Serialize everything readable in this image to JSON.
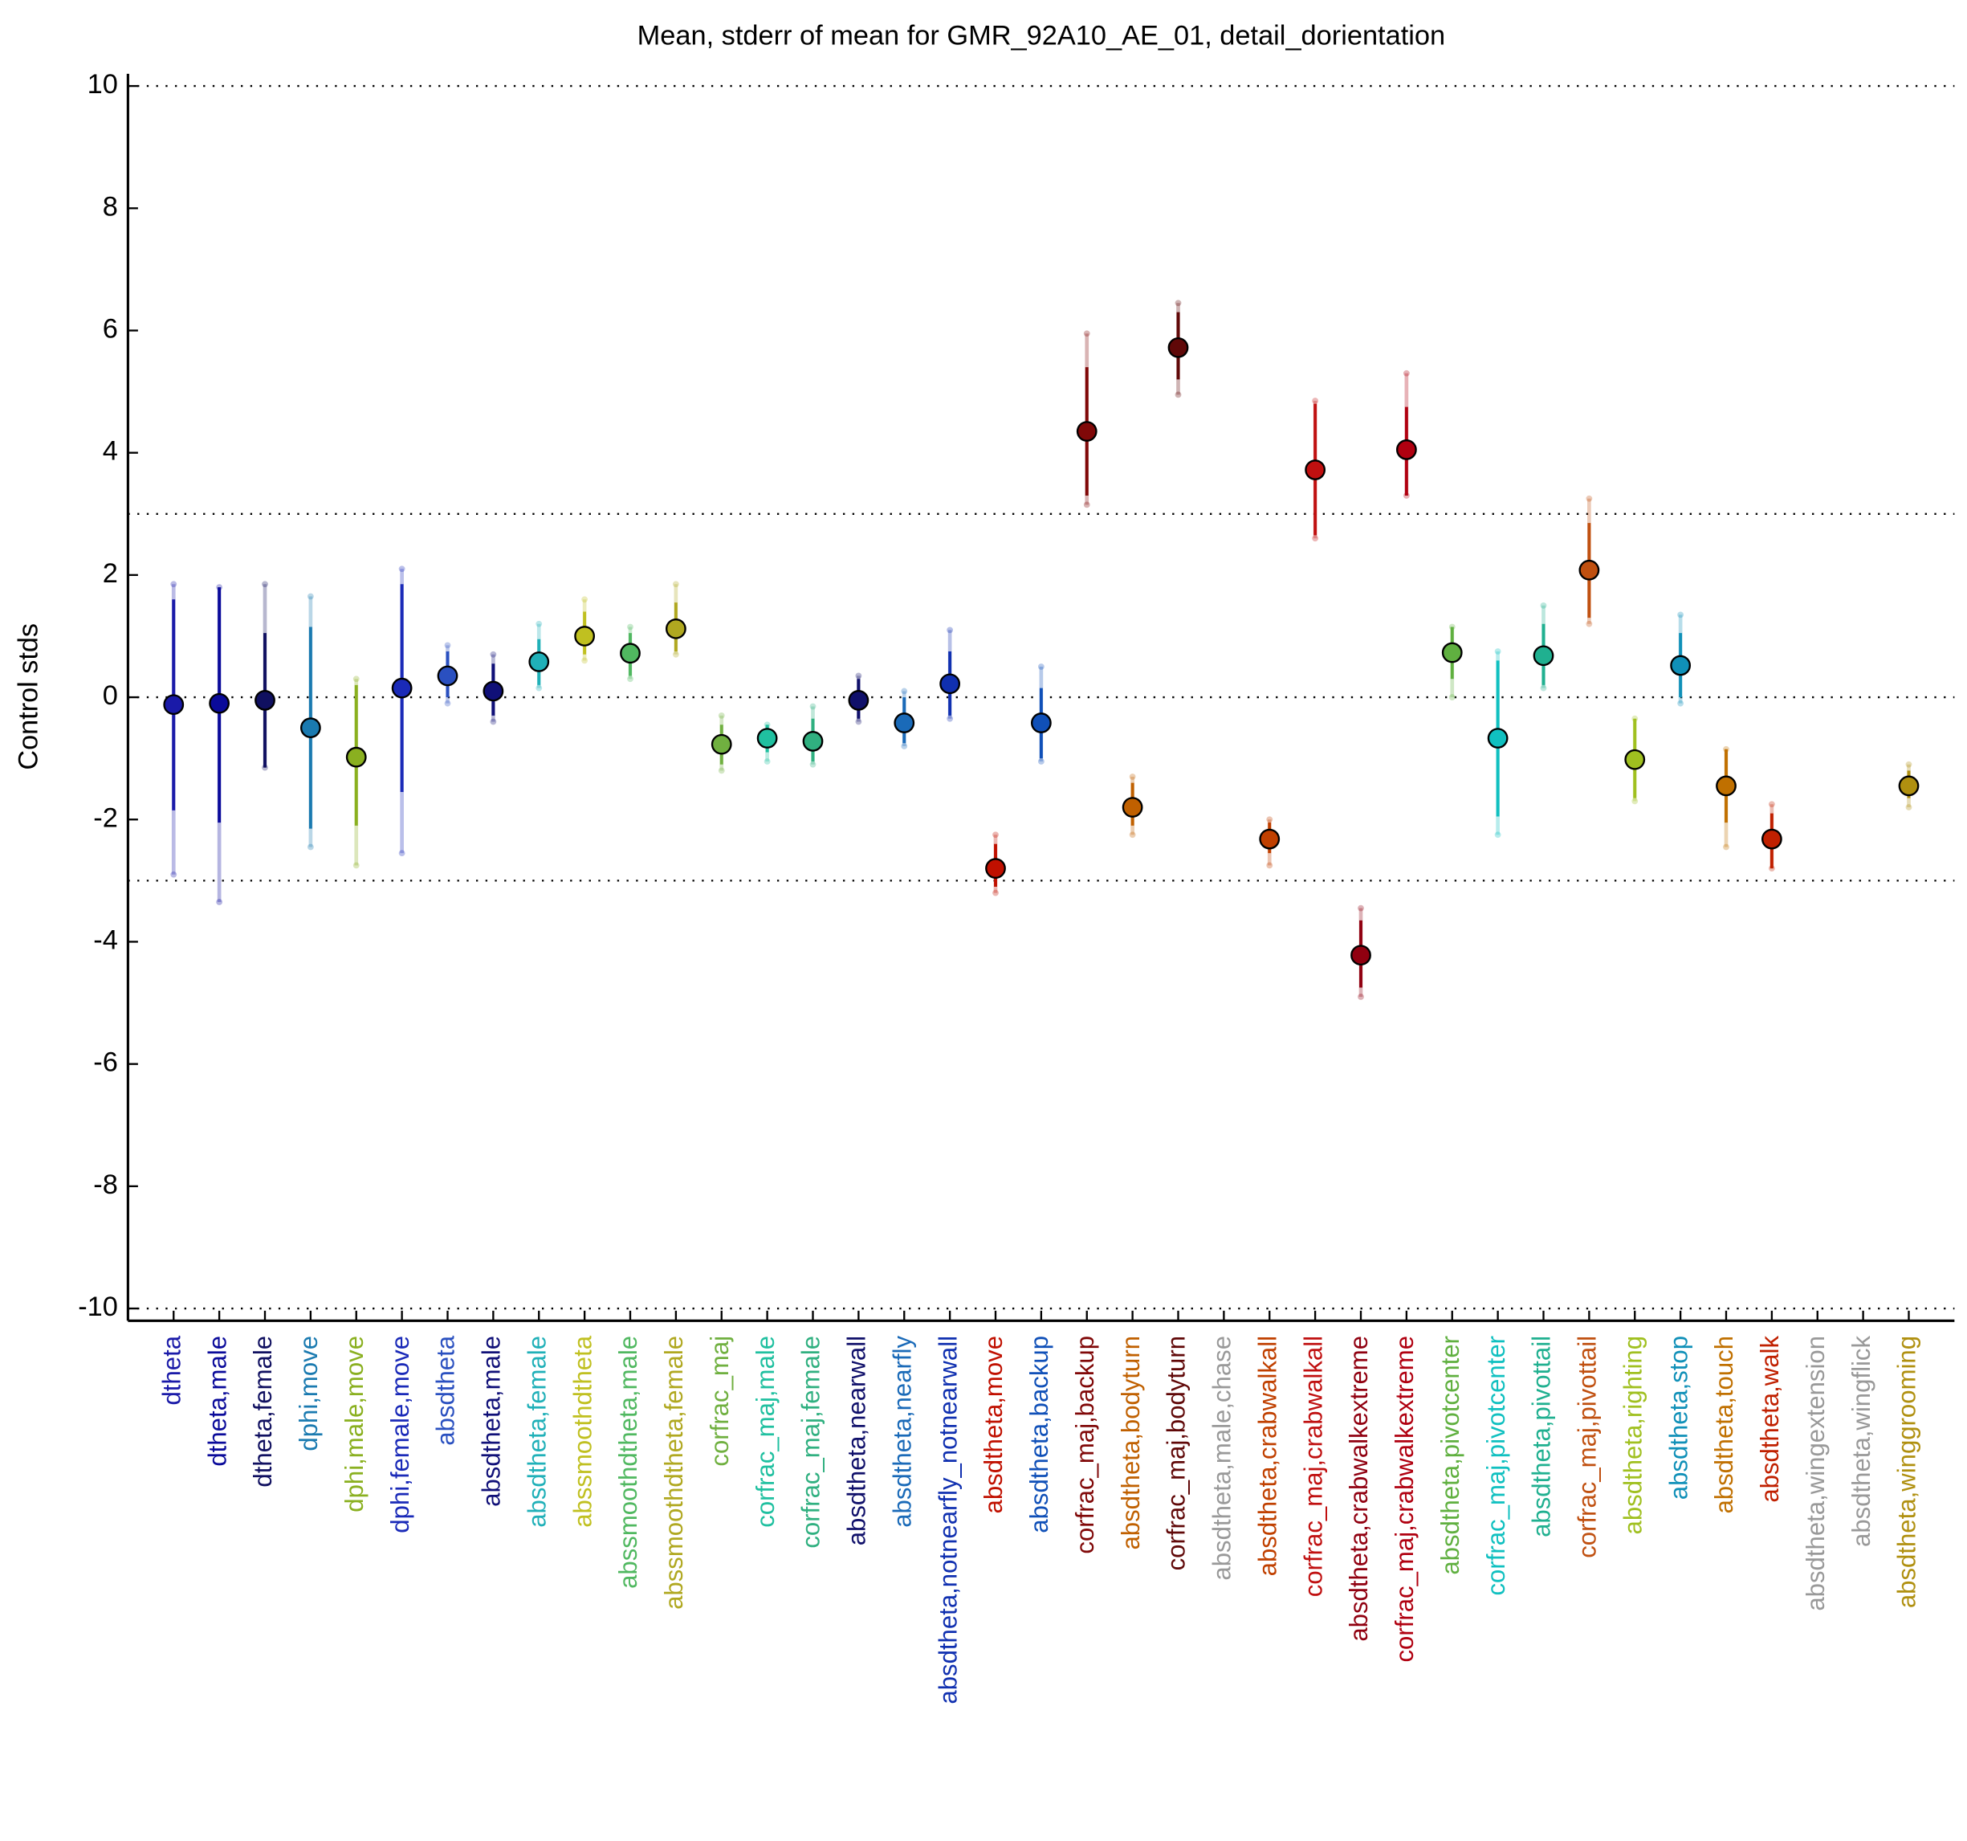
{
  "chart_data": {
    "type": "errorbar",
    "title": "Mean, stderr of mean for GMR_92A10_AE_01, detail_dorientation",
    "y_label": "Control stds",
    "ylim": [
      -10.2,
      10.2
    ],
    "yticks": [
      -10,
      -8,
      -6,
      -4,
      -2,
      0,
      2,
      4,
      6,
      8,
      10
    ],
    "hlines": [
      -10,
      -3,
      0,
      3,
      10
    ],
    "categories": [
      "dtheta",
      "dtheta,male",
      "dtheta,female",
      "dphi,move",
      "dphi,male,move",
      "dphi,female,move",
      "absdtheta",
      "absdtheta,male",
      "absdtheta,female",
      "abssmoothdtheta",
      "abssmoothdtheta,male",
      "abssmoothdtheta,female",
      "corfrac_maj",
      "corfrac_maj,male",
      "corfrac_maj,female",
      "absdtheta,nearwall",
      "absdtheta,nearfly",
      "absdtheta,notnearfly_notnearwall",
      "absdtheta,move",
      "absdtheta,backup",
      "corfrac_maj,backup",
      "absdtheta,bodyturn",
      "corfrac_maj,bodyturn",
      "absdtheta,male,chase",
      "absdtheta,crabwalkall",
      "corfrac_maj,crabwalkall",
      "absdtheta,crabwalkextreme",
      "corfrac_maj,crabwalkextreme",
      "absdtheta,pivotcenter",
      "corfrac_maj,pivotcenter",
      "absdtheta,pivottail",
      "corfrac_maj,pivottail",
      "absdtheta,righting",
      "absdtheta,stop",
      "absdtheta,touch",
      "absdtheta,walk",
      "absdtheta,wingextension",
      "absdtheta,wingflick",
      "absdtheta,winggrooming"
    ],
    "colors": [
      "#1a1aa8",
      "#0a0a9a",
      "#101060",
      "#1a7ab0",
      "#8ab020",
      "#1a2ab8",
      "#2a50c0",
      "#101078",
      "#20b0b8",
      "#c0c020",
      "#50b860",
      "#b0a820",
      "#70b040",
      "#20c0a0",
      "#30b080",
      "#10106a",
      "#1a6ab8",
      "#1030b0",
      "#c01000",
      "#1050b8",
      "#800808",
      "#c06000",
      "#600808",
      "#999999",
      "#c04000",
      "#c01010",
      "#900010",
      "#b00010",
      "#60b040",
      "#10c0c0",
      "#20b090",
      "#c05010",
      "#a0c020",
      "#1090b8",
      "#c07000",
      "#c02000",
      "#999999",
      "#999999",
      "#b09010"
    ],
    "values": [
      -0.12,
      -0.1,
      -0.05,
      -0.5,
      -0.98,
      0.15,
      0.35,
      0.1,
      0.58,
      1.0,
      0.72,
      1.12,
      -0.77,
      -0.67,
      -0.72,
      -0.05,
      -0.42,
      0.22,
      -2.8,
      -0.42,
      4.35,
      -1.8,
      5.72,
      null,
      -2.32,
      3.72,
      -4.22,
      4.05,
      0.73,
      -0.67,
      0.68,
      2.08,
      -1.02,
      0.52,
      -1.45,
      -2.32,
      null,
      null,
      -1.45
    ],
    "err_low": [
      -1.85,
      -2.05,
      -1.15,
      -2.15,
      -2.1,
      -1.55,
      0.0,
      -0.3,
      0.2,
      0.7,
      0.35,
      0.75,
      -1.1,
      -0.9,
      -1.05,
      -0.35,
      -0.75,
      -0.3,
      -3.1,
      -1.0,
      3.3,
      -2.1,
      5.2,
      null,
      -2.55,
      2.65,
      -4.75,
      3.3,
      0.3,
      -1.95,
      0.2,
      1.3,
      -1.65,
      0.0,
      -2.05,
      -2.8,
      null,
      null,
      -1.65
    ],
    "err_high": [
      1.6,
      1.8,
      1.05,
      1.15,
      0.2,
      1.85,
      0.75,
      0.55,
      0.95,
      1.4,
      1.05,
      1.55,
      -0.45,
      -0.45,
      -0.35,
      0.3,
      0.0,
      0.75,
      -2.4,
      0.15,
      5.4,
      -1.4,
      6.3,
      null,
      -2.05,
      4.8,
      -3.65,
      4.75,
      1.15,
      0.6,
      1.2,
      2.85,
      -0.35,
      1.05,
      -0.85,
      -1.9,
      null,
      null,
      -1.2
    ],
    "range_low": [
      -2.9,
      -3.35,
      -1.15,
      -2.45,
      -2.75,
      -2.55,
      -0.1,
      -0.4,
      0.15,
      0.6,
      0.3,
      0.7,
      -1.2,
      -1.05,
      -1.1,
      -0.4,
      -0.8,
      -0.35,
      -3.2,
      -1.05,
      3.15,
      -2.25,
      4.95,
      null,
      -2.75,
      2.6,
      -4.9,
      3.3,
      0.0,
      -2.25,
      0.15,
      1.2,
      -1.7,
      -0.1,
      -2.45,
      -2.8,
      null,
      null,
      -1.8
    ],
    "range_high": [
      1.85,
      1.8,
      1.85,
      1.65,
      0.3,
      2.1,
      0.85,
      0.7,
      1.2,
      1.6,
      1.15,
      1.85,
      -0.3,
      -0.45,
      -0.15,
      0.35,
      0.1,
      1.1,
      -2.25,
      0.5,
      5.95,
      -1.3,
      6.45,
      null,
      -2.0,
      4.85,
      -3.45,
      5.3,
      1.15,
      0.75,
      1.5,
      3.25,
      -0.35,
      1.35,
      -0.85,
      -1.75,
      null,
      null,
      -1.1
    ]
  }
}
